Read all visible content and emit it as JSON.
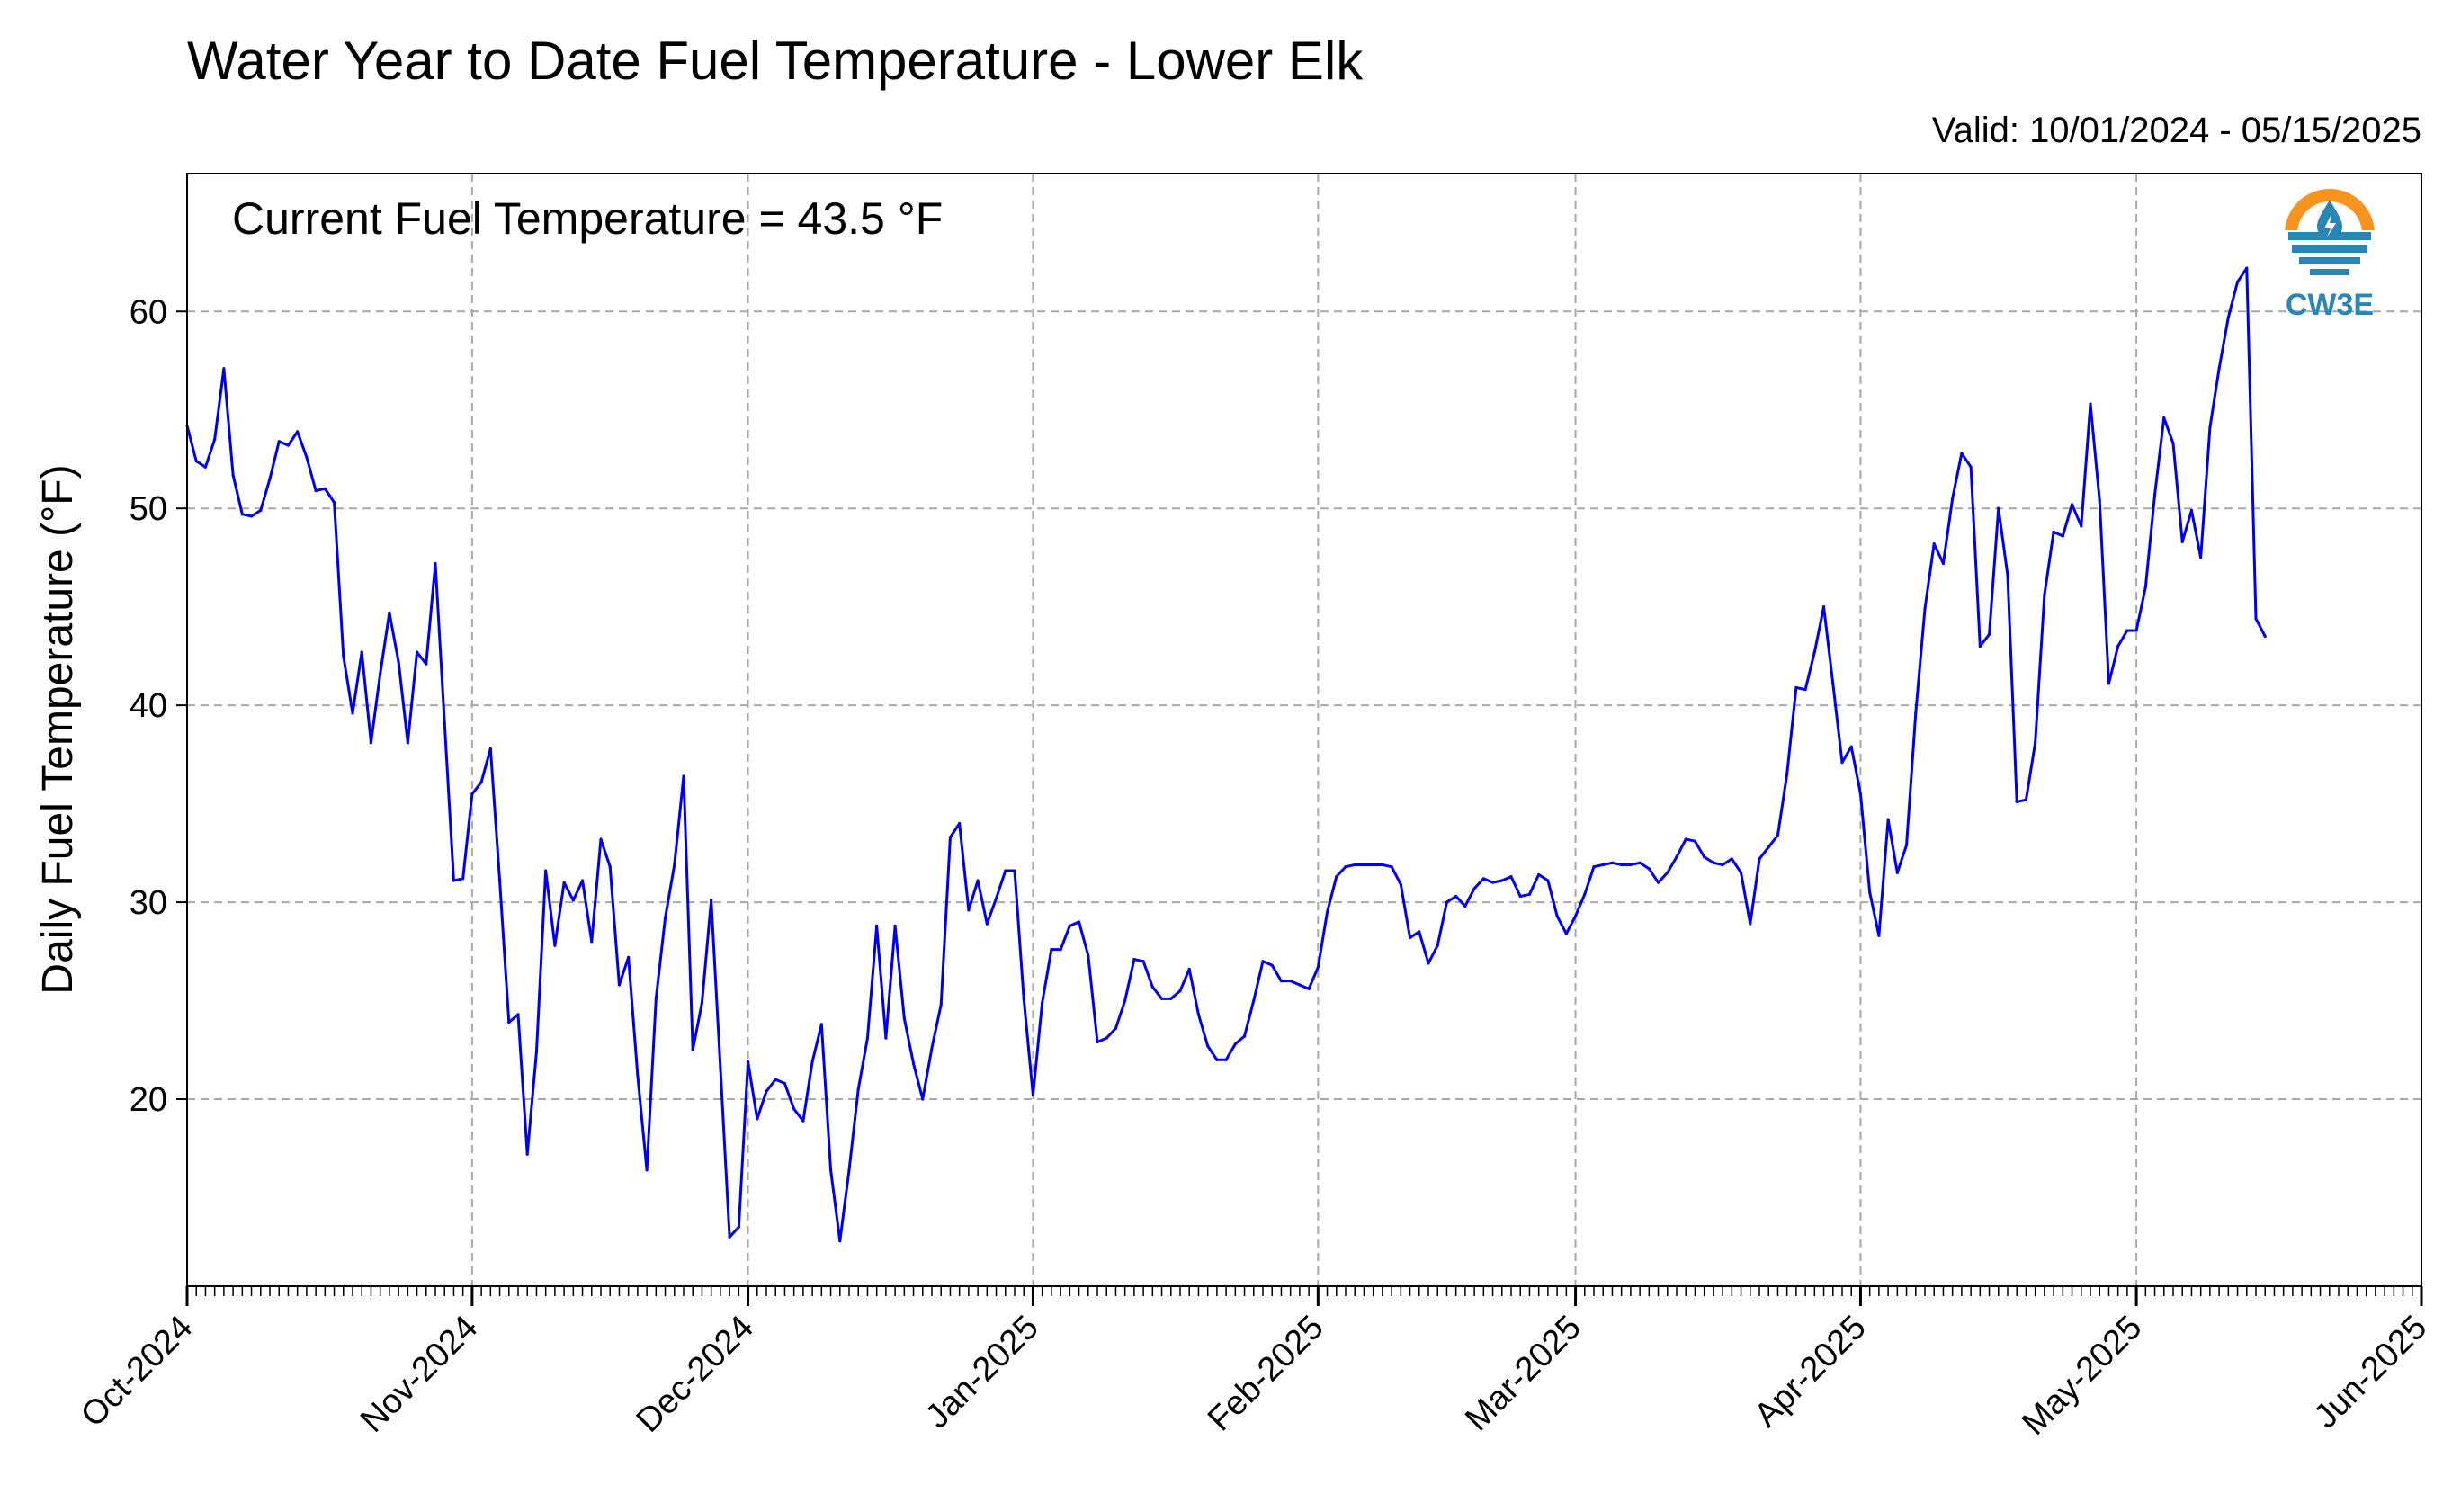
{
  "chart_data": {
    "type": "line",
    "title": "Water Year to Date Fuel Temperature - Lower Elk",
    "subtitle": "Valid: 10/01/2024 - 05/15/2025",
    "annotation": "Current Fuel Temperature = 43.5 °F",
    "ylabel": "Daily Fuel Temperature (°F)",
    "xlabel": "",
    "ylim": [
      10.5,
      67
    ],
    "yticks": [
      20,
      30,
      40,
      50,
      60
    ],
    "xlim": [
      "2024-10-01",
      "2025-06-01"
    ],
    "xticks": [
      "Oct-2024",
      "Nov-2024",
      "Dec-2024",
      "Jan-2025",
      "Feb-2025",
      "Mar-2025",
      "Apr-2025",
      "May-2025",
      "Jun-2025"
    ],
    "grid": true,
    "line_color": "#0000ee",
    "series": [
      {
        "x": [
          "2024-10-01",
          "2024-10-02",
          "2024-10-03",
          "2024-10-04",
          "2024-10-05",
          "2024-10-06",
          "2024-10-07",
          "2024-10-08",
          "2024-10-09",
          "2024-10-10",
          "2024-10-11",
          "2024-10-12",
          "2024-10-13",
          "2024-10-14",
          "2024-10-15",
          "2024-10-16",
          "2024-10-17",
          "2024-10-18",
          "2024-10-19",
          "2024-10-20",
          "2024-10-21",
          "2024-10-22",
          "2024-10-23",
          "2024-10-24",
          "2024-10-25",
          "2024-10-26",
          "2024-10-27",
          "2024-10-28",
          "2024-10-29",
          "2024-10-30",
          "2024-10-31",
          "2024-11-01",
          "2024-11-02",
          "2024-11-03",
          "2024-11-04",
          "2024-11-05",
          "2024-11-06",
          "2024-11-07",
          "2024-11-08",
          "2024-11-09",
          "2024-11-10",
          "2024-11-11",
          "2024-11-12",
          "2024-11-13",
          "2024-11-14",
          "2024-11-15",
          "2024-11-16",
          "2024-11-17",
          "2024-11-18",
          "2024-11-19",
          "2024-11-20",
          "2024-11-21",
          "2024-11-22",
          "2024-11-23",
          "2024-11-24",
          "2024-11-25",
          "2024-11-26",
          "2024-11-27",
          "2024-11-28",
          "2024-11-29",
          "2024-11-30",
          "2024-12-01",
          "2024-12-02",
          "2024-12-03",
          "2024-12-04",
          "2024-12-05",
          "2024-12-06",
          "2024-12-07",
          "2024-12-08",
          "2024-12-09",
          "2024-12-10",
          "2024-12-11",
          "2024-12-12",
          "2024-12-13",
          "2024-12-14",
          "2024-12-15",
          "2024-12-16",
          "2024-12-17",
          "2024-12-18",
          "2024-12-19",
          "2024-12-20",
          "2024-12-21",
          "2024-12-22",
          "2024-12-23",
          "2024-12-24",
          "2024-12-25",
          "2024-12-26",
          "2024-12-27",
          "2024-12-28",
          "2024-12-29",
          "2024-12-30",
          "2024-12-31",
          "2025-01-01",
          "2025-01-02",
          "2025-01-03",
          "2025-01-04",
          "2025-01-05",
          "2025-01-06",
          "2025-01-07",
          "2025-01-08",
          "2025-01-09",
          "2025-01-10",
          "2025-01-11",
          "2025-01-12",
          "2025-01-13",
          "2025-01-14",
          "2025-01-15",
          "2025-01-16",
          "2025-01-17",
          "2025-01-18",
          "2025-01-19",
          "2025-01-20",
          "2025-01-21",
          "2025-01-22",
          "2025-01-23",
          "2025-01-24",
          "2025-01-25",
          "2025-01-26",
          "2025-01-27",
          "2025-01-28",
          "2025-01-29",
          "2025-01-30",
          "2025-01-31",
          "2025-02-01",
          "2025-02-02",
          "2025-02-03",
          "2025-02-04",
          "2025-02-05",
          "2025-02-06",
          "2025-02-07",
          "2025-02-08",
          "2025-02-09",
          "2025-02-10",
          "2025-02-11",
          "2025-02-12",
          "2025-02-13",
          "2025-02-14",
          "2025-02-15",
          "2025-02-16",
          "2025-02-17",
          "2025-02-18",
          "2025-02-19",
          "2025-02-20",
          "2025-02-21",
          "2025-02-22",
          "2025-02-23",
          "2025-02-24",
          "2025-02-25",
          "2025-02-26",
          "2025-02-27",
          "2025-02-28",
          "2025-03-01",
          "2025-03-02",
          "2025-03-03",
          "2025-03-04",
          "2025-03-05",
          "2025-03-06",
          "2025-03-07",
          "2025-03-08",
          "2025-03-09",
          "2025-03-10",
          "2025-03-11",
          "2025-03-12",
          "2025-03-13",
          "2025-03-14",
          "2025-03-15",
          "2025-03-16",
          "2025-03-17",
          "2025-03-18",
          "2025-03-19",
          "2025-03-20",
          "2025-03-21",
          "2025-03-22",
          "2025-03-23",
          "2025-03-24",
          "2025-03-25",
          "2025-03-26",
          "2025-03-27",
          "2025-03-28",
          "2025-03-29",
          "2025-03-30",
          "2025-03-31",
          "2025-04-01",
          "2025-04-02",
          "2025-04-03",
          "2025-04-04",
          "2025-04-05",
          "2025-04-06",
          "2025-04-07",
          "2025-04-08",
          "2025-04-09",
          "2025-04-10",
          "2025-04-11",
          "2025-04-12",
          "2025-04-13",
          "2025-04-14",
          "2025-04-15",
          "2025-04-16",
          "2025-04-17",
          "2025-04-18",
          "2025-04-19",
          "2025-04-20",
          "2025-04-21",
          "2025-04-22",
          "2025-04-23",
          "2025-04-24",
          "2025-04-25",
          "2025-04-26",
          "2025-04-27",
          "2025-04-28",
          "2025-04-29",
          "2025-04-30",
          "2025-05-01",
          "2025-05-02",
          "2025-05-03",
          "2025-05-04",
          "2025-05-05",
          "2025-05-06",
          "2025-05-07",
          "2025-05-08",
          "2025-05-09",
          "2025-05-10",
          "2025-05-11",
          "2025-05-12",
          "2025-05-13",
          "2025-05-14",
          "2025-05-15"
        ],
        "values": [
          54.2,
          52.4,
          52.1,
          53.5,
          57.1,
          51.7,
          49.7,
          49.6,
          49.9,
          51.5,
          53.4,
          53.2,
          53.9,
          52.6,
          50.9,
          51.0,
          50.3,
          42.5,
          39.6,
          42.7,
          38.1,
          41.6,
          44.7,
          42.2,
          38.1,
          42.7,
          42.1,
          47.2,
          39.1,
          31.1,
          31.2,
          35.5,
          36.1,
          37.8,
          31.1,
          23.9,
          24.3,
          17.2,
          22.4,
          31.6,
          27.8,
          31.0,
          30.1,
          31.1,
          28.0,
          33.2,
          31.8,
          25.8,
          27.2,
          21.2,
          16.4,
          25.1,
          29.2,
          31.9,
          36.4,
          22.5,
          24.9,
          30.1,
          21.6,
          13.0,
          13.5,
          21.9,
          19.0,
          20.4,
          21.0,
          20.8,
          19.5,
          18.9,
          21.9,
          23.8,
          16.4,
          12.8,
          16.4,
          20.5,
          23.1,
          28.8,
          23.1,
          28.8,
          24.1,
          21.8,
          20.0,
          22.6,
          24.8,
          33.3,
          34.0,
          29.6,
          31.1,
          28.9,
          30.2,
          31.6,
          31.6,
          25.1,
          20.2,
          24.9,
          27.6,
          27.6,
          28.8,
          29.0,
          27.3,
          22.9,
          23.1,
          23.6,
          25.0,
          27.1,
          27.0,
          25.7,
          25.1,
          25.1,
          25.5,
          26.6,
          24.3,
          22.7,
          22.0,
          22.0,
          22.8,
          23.2,
          25.0,
          27.0,
          26.8,
          26.0,
          26.0,
          25.8,
          25.6,
          26.7,
          29.5,
          31.3,
          31.8,
          31.9,
          31.9,
          31.9,
          31.9,
          31.8,
          30.9,
          28.2,
          28.5,
          26.9,
          27.8,
          30.0,
          30.3,
          29.8,
          30.7,
          31.2,
          31.0,
          31.1,
          31.3,
          30.3,
          30.4,
          31.4,
          31.1,
          29.3,
          28.4,
          29.3,
          30.4,
          31.8,
          31.9,
          32.0,
          31.9,
          31.9,
          32.0,
          31.7,
          31.0,
          31.5,
          32.3,
          33.2,
          33.1,
          32.3,
          32.0,
          31.9,
          32.2,
          31.5,
          28.9,
          32.2,
          32.8,
          33.4,
          36.5,
          40.9,
          40.8,
          42.7,
          45.0,
          41.1,
          37.1,
          37.9,
          35.5,
          30.5,
          28.3,
          34.2,
          31.5,
          32.9,
          39.6,
          44.9,
          48.2,
          47.2,
          50.5,
          52.8,
          52.1,
          43.0,
          43.6,
          50.0,
          46.6,
          35.1,
          35.2,
          38.1,
          45.6,
          48.8,
          48.6,
          50.2,
          49.1,
          55.3,
          50.4,
          41.1,
          43.0,
          43.8,
          43.8,
          46.0,
          50.7,
          54.6,
          53.3,
          48.3,
          49.9,
          47.5,
          54.1,
          57.1,
          59.7,
          61.5,
          62.2,
          44.4,
          43.5
        ]
      }
    ]
  },
  "logo": {
    "text": "CW3E",
    "icon": "cw3e-logo-icon",
    "ring_color": "#f7931e",
    "wave_color": "#2b86b8"
  }
}
